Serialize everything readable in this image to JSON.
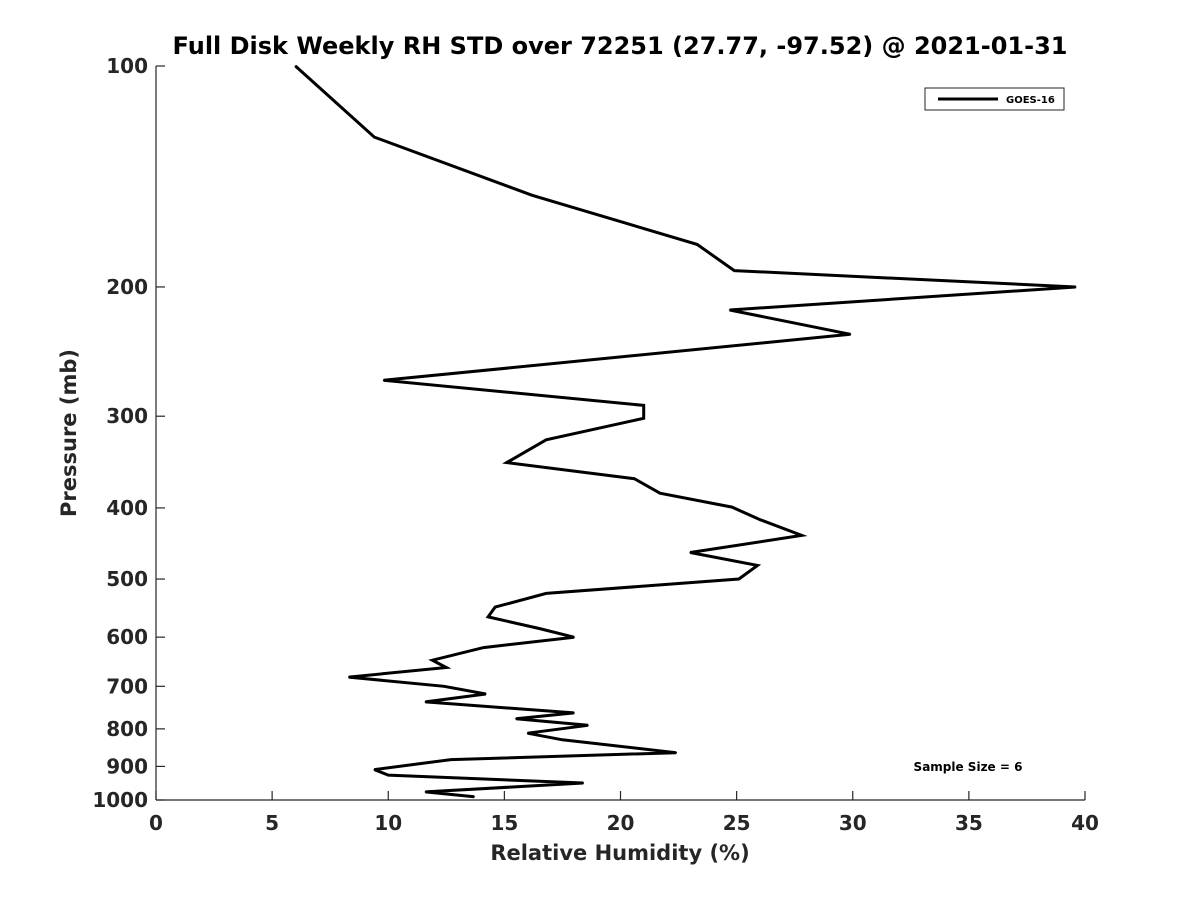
{
  "chart_data": {
    "type": "line",
    "title": "Full Disk Weekly RH STD over 72251 (27.77, -97.52) @ 2021-01-31",
    "xlabel": "Relative Humidity (%)",
    "ylabel": "Pressure (mb)",
    "xlim": [
      0,
      40
    ],
    "ylim": [
      100,
      1000
    ],
    "yscale": "log",
    "y_reversed": true,
    "grid": false,
    "x_ticks": [
      0,
      5,
      10,
      15,
      20,
      25,
      30,
      35,
      40
    ],
    "x_tick_labels": [
      "0",
      "5",
      "10",
      "15",
      "20",
      "25",
      "30",
      "35",
      "40"
    ],
    "y_ticks": [
      100,
      200,
      300,
      400,
      500,
      600,
      700,
      800,
      900,
      1000
    ],
    "y_tick_labels": [
      "100",
      "200",
      "300",
      "400",
      "500",
      "600",
      "700",
      "800",
      "900",
      "1000"
    ],
    "legend": {
      "position": "top-right",
      "entries": [
        "GOES-16"
      ]
    },
    "annotation": "Sample Size = 6",
    "series": [
      {
        "name": "GOES-16",
        "color": "#000000",
        "rh": [
          6.0,
          9.4,
          16.2,
          23.3,
          24.9,
          39.6,
          24.7,
          29.9,
          9.8,
          21.0,
          21.0,
          16.8,
          15.1,
          20.6,
          21.7,
          24.8,
          26.0,
          27.8,
          23.0,
          25.9,
          25.1,
          16.8,
          14.6,
          14.3,
          16.5,
          18.0,
          14.1,
          11.9,
          12.5,
          8.3,
          12.4,
          14.2,
          11.6,
          18.0,
          15.5,
          18.6,
          16.0,
          17.5,
          22.4,
          12.7,
          9.4,
          10.0,
          18.4,
          11.6,
          13.7
        ],
        "pressure": [
          100,
          125,
          150,
          175,
          190,
          200,
          215,
          232,
          268,
          290,
          302,
          323,
          347,
          365,
          382,
          399,
          415,
          436,
          460,
          479,
          500,
          523,
          546,
          563,
          584,
          600,
          620,
          645,
          660,
          680,
          700,
          717,
          735,
          761,
          775,
          791,
          811,
          828,
          862,
          881,
          909,
          925,
          948,
          975,
          990
        ]
      }
    ]
  }
}
